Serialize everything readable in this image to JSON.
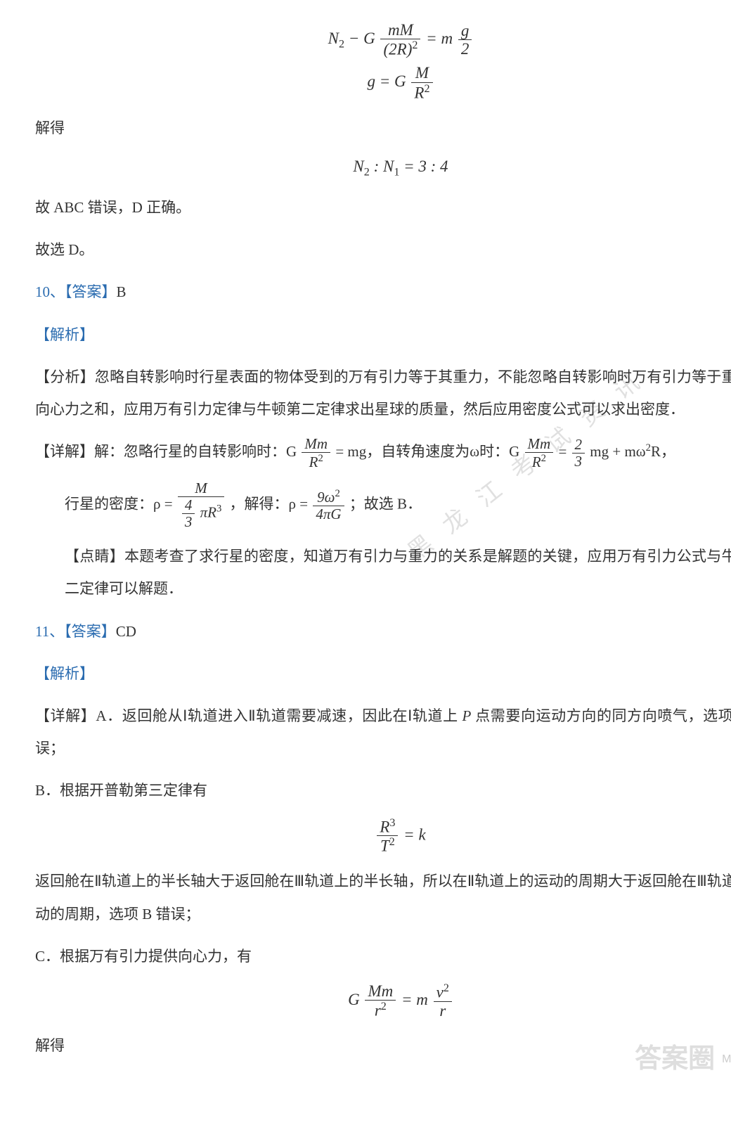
{
  "colors": {
    "text": "#333333",
    "accent": "#2b6cb0",
    "bg": "#ffffff",
    "wm": "rgba(0,0,0,0.12)",
    "corner": "#bfbfbf"
  },
  "fonts": {
    "body_pt": 16,
    "eq_pt": 17
  },
  "eq1_line1_html": "<i>N</i><sub>2</sub> − <i>G</i> <span class='frac'><span class='num'><i>m</i><i>M</i></span><span class='den'>(2<i>R</i>)<sup>2</sup></span></span> = <i>m</i> <span class='frac'><span class='num'><i>g</i></span><span class='den'>2</span></span>",
  "eq1_line2_html": "<i>g</i> = <i>G</i> <span class='frac'><span class='num'><i>M</i></span><span class='den'><i>R</i><sup>2</sup></span></span>",
  "t_jiede": "解得",
  "eq2_html": "<i>N</i><sub>2</sub> : <i>N</i><sub>1</sub> = 3 : 4",
  "t_abc_wrong": "故 ABC 错误，D 正确。",
  "t_guxuan_d": "故选 D。",
  "q10_num": "10、",
  "ans_label": "【答案】",
  "jx_label": "【解析】",
  "q10_ans": "B",
  "q10_fx_html": "【分析】忽略自转影响时行星表面的物体受到的万有引力等于其重力，不能忽略自转影响时万有引力等于重力与向心力之和，应用万有引力定律与牛顿第二定律求出星球的质量，然后应用密度公式可以求出密度．",
  "q10_xj_html": "【详解】解：忽略行星的自转影响时：G <span class='frac'><span class='num'><i>M</i><i>m</i></span><span class='den'><i>R</i><sup>2</sup></span></span> = mg，自转角速度为ω时：G <span class='frac'><span class='num'><i>M</i><i>m</i></span><span class='den'><i>R</i><sup>2</sup></span></span> = <span class='frac'><span class='num'>2</span><span class='den'>3</span></span> mg + mω<sup>2</sup>R，",
  "q10_dens_html": "行星的密度：ρ = <span class='frac'><span class='num'><i>M</i></span><span class='den'><span class='frac'><span class='num'>4</span><span class='den'>3</span></span> π<i>R</i><sup>3</sup></span></span> ，解得：ρ = <span class='frac'><span class='num'>9ω<sup>2</sup></span><span class='den'>4π<i>G</i></span></span> ；故选 B．",
  "q10_dj_html": "【点睛】本题考查了求行星的密度，知道万有引力与重力的关系是解题的关键，应用万有引力公式与牛顿第二定律可以解题．",
  "q11_num": "11、",
  "q11_ans": "CD",
  "q11_A_html": "【详解】A．返回舱从Ⅰ轨道进入Ⅱ轨道需要减速，因此在Ⅰ轨道上 <i>P</i> 点需要向运动方向的同方向喷气，选项 A 错误；",
  "q11_B_intro": "B．根据开普勒第三定律有",
  "eq_kepler_html": "<span class='frac'><span class='num'><i>R</i><sup>3</sup></span><span class='den'><i>T</i><sup>2</sup></span></span> = <i>k</i>",
  "q11_B_after": "返回舱在Ⅱ轨道上的半长轴大于返回舱在Ⅲ轨道上的半长轴，所以在Ⅱ轨道上的运动的周期大于返回舱在Ⅲ轨道上运动的周期，选项 B 错误；",
  "q11_C_intro": "C．根据万有引力提供向心力，有",
  "eq_centripetal_html": "<i>G</i> <span class='frac'><span class='num'><i>M</i><i>m</i></span><span class='den'><i>r</i><sup>2</sup></span></span> = <i>m</i> <span class='frac'><span class='num'><i>v</i><sup>2</sup></span><span class='den'><i>r</i></span></span>",
  "watermark_diag": "黑龙江考试资讯",
  "corner_big": "答案圈",
  "corner_sm": "MXQE.COM"
}
